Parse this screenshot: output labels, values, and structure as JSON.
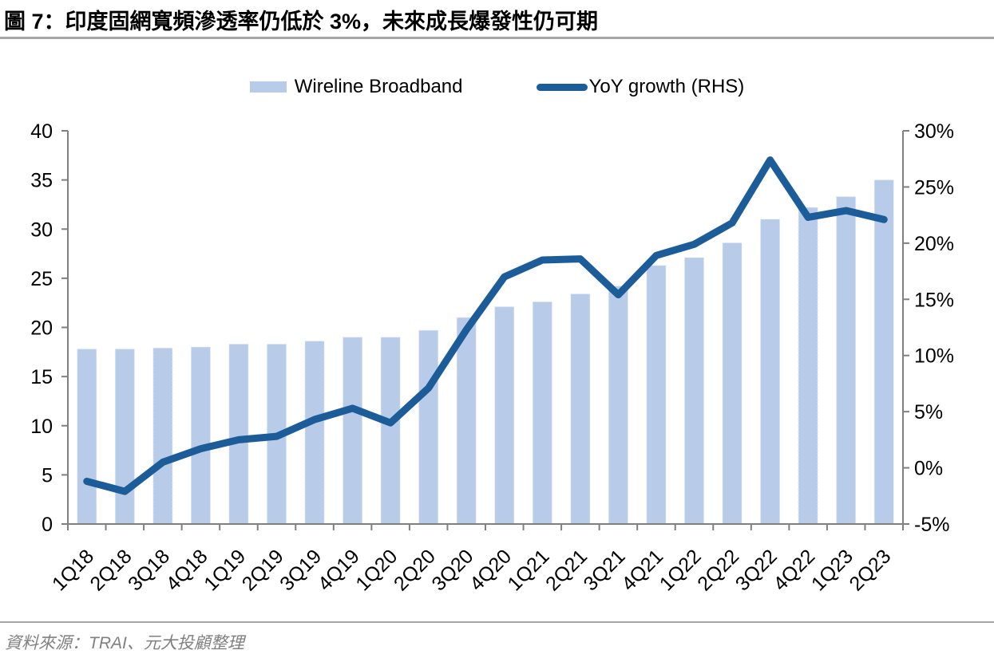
{
  "header": {
    "title": "圖 7：印度固網寬頻滲透率仍低於 3%，未來成長爆發性仍可期"
  },
  "footer": {
    "source": "資料來源：TRAI、元大投顧整理"
  },
  "chart_data": {
    "type": "combo-bar-line",
    "title": "",
    "categories": [
      "1Q18",
      "2Q18",
      "3Q18",
      "4Q18",
      "1Q19",
      "2Q19",
      "3Q19",
      "4Q19",
      "1Q20",
      "2Q20",
      "3Q20",
      "4Q20",
      "1Q21",
      "2Q21",
      "3Q21",
      "4Q21",
      "1Q22",
      "2Q22",
      "3Q22",
      "4Q22",
      "1Q23",
      "2Q23"
    ],
    "series": [
      {
        "name": "Wireline Broadband",
        "type": "bar",
        "axis": "left",
        "color": "#b8cbe8",
        "edge_color": "#dde6f4",
        "values": [
          17.8,
          17.8,
          17.9,
          18.0,
          18.3,
          18.3,
          18.6,
          19.0,
          19.0,
          19.7,
          21.0,
          22.1,
          22.6,
          23.4,
          24.2,
          26.3,
          27.1,
          28.6,
          31.0,
          32.2,
          33.3,
          35.0
        ]
      },
      {
        "name": "YoY growth (RHS)",
        "type": "line",
        "axis": "right",
        "color": "#1c5d99",
        "values": [
          -1.2,
          -2.1,
          0.5,
          1.7,
          2.5,
          2.8,
          4.3,
          5.3,
          4.0,
          7.1,
          12.3,
          17.0,
          18.5,
          18.6,
          15.4,
          18.9,
          19.9,
          21.8,
          27.4,
          22.3,
          22.9,
          22.1
        ]
      }
    ],
    "left_axis": {
      "min": 0,
      "max": 40,
      "step": 5,
      "tick_labels": [
        "40",
        "35",
        "30",
        "25",
        "20",
        "15",
        "10",
        "5",
        "0"
      ]
    },
    "right_axis": {
      "min": -5,
      "max": 30,
      "step": 5,
      "tick_labels": [
        "30%",
        "25%",
        "20%",
        "15%",
        "10%",
        "5%",
        "0%",
        "-5%"
      ]
    },
    "axis_color": "#808080",
    "tick_label_color": "#000000",
    "legend_position": "top",
    "gridlines": false
  }
}
